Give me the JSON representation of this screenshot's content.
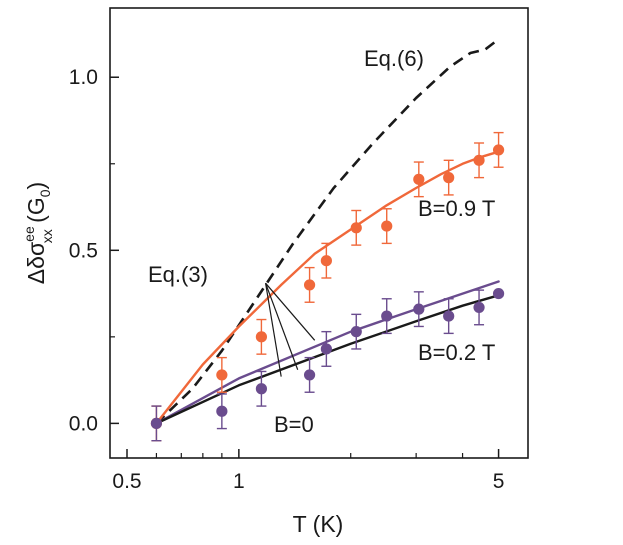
{
  "chart_data": {
    "type": "scatter",
    "xlabel": "T (K)",
    "ylabel_parts": {
      "main": "Δδσ",
      "sup": "ee",
      "sub": "xx",
      "tail": " (G",
      "tail_sub": "0",
      "close": ")"
    },
    "xscale": "log",
    "xlim": [
      0.45,
      6.0
    ],
    "ylim": [
      -0.1,
      1.2
    ],
    "x_ticks": [
      0.5,
      1,
      5
    ],
    "x_tick_labels": [
      "0.5",
      "1",
      "5"
    ],
    "y_ticks": [
      0.0,
      0.5,
      1.0
    ],
    "y_tick_labels": [
      "0.0",
      "0.5",
      "1.0"
    ],
    "grid": false,
    "series": [
      {
        "name": "B=0.9 T",
        "kind": "points",
        "color": "#f0683a",
        "x": [
          0.6,
          0.9,
          1.15,
          1.55,
          1.72,
          2.07,
          2.5,
          3.05,
          3.67,
          4.43,
          5.0
        ],
        "y": [
          0.0,
          0.14,
          0.25,
          0.4,
          0.47,
          0.565,
          0.57,
          0.705,
          0.71,
          0.76,
          0.79
        ],
        "err": [
          0.05,
          0.05,
          0.05,
          0.05,
          0.05,
          0.05,
          0.05,
          0.05,
          0.05,
          0.05,
          0.05
        ]
      },
      {
        "name": "B=0.2 T",
        "kind": "points",
        "color": "#6a4c8e",
        "x": [
          0.6,
          0.9,
          1.15,
          1.55,
          1.72,
          2.07,
          2.5,
          3.05,
          3.67,
          4.43,
          5.0
        ],
        "y": [
          0.0,
          0.035,
          0.1,
          0.14,
          0.215,
          0.265,
          0.31,
          0.33,
          0.31,
          0.335,
          0.375
        ],
        "err": [
          0.05,
          0.05,
          0.05,
          0.05,
          0.05,
          0.05,
          0.05,
          0.05,
          0.05,
          0.05,
          0.0
        ]
      },
      {
        "name": "Eq.(6)",
        "kind": "line",
        "style": "dashed",
        "color": "#1a1a1a",
        "x": [
          0.6,
          0.75,
          0.9,
          1.1,
          1.4,
          1.8,
          2.3,
          3.0,
          3.7,
          4.2,
          4.6,
          5.0
        ],
        "y": [
          0.0,
          0.1,
          0.21,
          0.35,
          0.52,
          0.68,
          0.81,
          0.94,
          1.03,
          1.07,
          1.08,
          1.11
        ]
      },
      {
        "name": "Eq.(3) B=0.9 T",
        "kind": "line",
        "color": "#f0683a",
        "x": [
          0.6,
          0.8,
          1.0,
          1.3,
          1.6,
          2.0,
          2.5,
          3.0,
          3.5,
          4.0,
          4.5,
          5.0
        ],
        "y": [
          0.0,
          0.17,
          0.28,
          0.4,
          0.49,
          0.56,
          0.63,
          0.68,
          0.72,
          0.75,
          0.77,
          0.785
        ]
      },
      {
        "name": "Eq.(3) B=0.2 T",
        "kind": "line",
        "color": "#6a4c8e",
        "x": [
          0.6,
          1.0,
          2.0,
          3.0,
          4.0,
          5.0
        ],
        "y": [
          0.0,
          0.13,
          0.265,
          0.33,
          0.375,
          0.41
        ]
      },
      {
        "name": "Eq.(3) B=0",
        "kind": "line",
        "color": "#1a1a1a",
        "x": [
          0.6,
          1.0,
          2.0,
          3.0,
          4.0,
          5.0
        ],
        "y": [
          0.0,
          0.11,
          0.23,
          0.295,
          0.34,
          0.37
        ]
      }
    ],
    "annotations": {
      "eq6": "Eq.(6)",
      "eq3": "Eq.(3)",
      "b09": "B=0.9 T",
      "b02": "B=0.2 T",
      "b0": "B=0"
    },
    "pointers": [
      {
        "from": [
          1.18,
          0.405
        ],
        "to": [
          1.6,
          0.24
        ]
      },
      {
        "from": [
          1.18,
          0.405
        ],
        "to": [
          1.44,
          0.155
        ]
      },
      {
        "from": [
          1.18,
          0.405
        ],
        "to": [
          1.3,
          0.135
        ]
      }
    ]
  }
}
